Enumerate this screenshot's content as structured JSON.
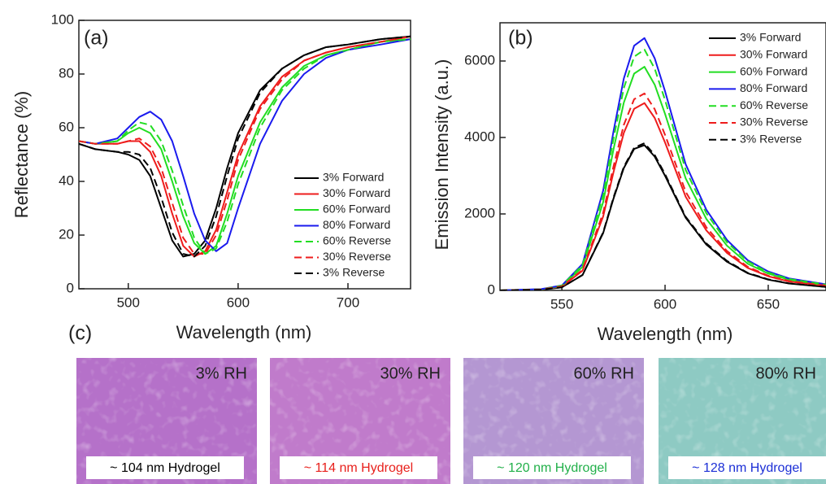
{
  "chart_data": [
    {
      "type": "line",
      "panel_label": "(a)",
      "x_label": "Wavelength (nm)",
      "y_label": "Reflectance (%)",
      "xlim": [
        455,
        757
      ],
      "ylim": [
        0,
        100
      ],
      "xticks": [
        500,
        600,
        700
      ],
      "yticks": [
        0,
        20,
        40,
        60,
        80,
        100
      ],
      "legend": "lower right",
      "x": [
        455,
        470,
        490,
        500,
        510,
        520,
        530,
        540,
        550,
        560,
        570,
        580,
        590,
        600,
        620,
        640,
        660,
        680,
        700,
        730,
        757
      ],
      "series": [
        {
          "name": "3% Forward",
          "color": "#000000",
          "dash": false,
          "values": [
            54,
            52,
            51,
            50,
            48,
            42,
            30,
            18,
            12,
            13,
            18,
            30,
            45,
            58,
            74,
            82,
            87,
            90,
            91,
            93,
            94
          ]
        },
        {
          "name": "30% Forward",
          "color": "#ee1c1c",
          "dash": false,
          "values": [
            55,
            54,
            54,
            55,
            55,
            51,
            42,
            28,
            16,
            12,
            14,
            22,
            36,
            50,
            68,
            79,
            85,
            88,
            90,
            92,
            94
          ]
        },
        {
          "name": "60% Forward",
          "color": "#22dd22",
          "dash": false,
          "values": [
            55,
            54,
            55,
            58,
            60,
            58,
            52,
            40,
            27,
            17,
            13,
            16,
            28,
            42,
            62,
            75,
            83,
            87,
            89,
            92,
            93
          ]
        },
        {
          "name": "80% Forward",
          "color": "#1a1aee",
          "dash": false,
          "values": [
            55,
            54,
            56,
            60,
            64,
            66,
            63,
            55,
            42,
            28,
            18,
            14,
            17,
            30,
            54,
            70,
            80,
            86,
            89,
            91,
            93
          ]
        },
        {
          "name": "60% Reverse",
          "color": "#22dd22",
          "dash": true,
          "values": [
            55,
            54,
            55,
            59,
            62,
            61,
            55,
            44,
            31,
            19,
            13,
            15,
            25,
            39,
            60,
            74,
            82,
            87,
            89,
            92,
            93
          ]
        },
        {
          "name": "30% Reverse",
          "color": "#ee1c1c",
          "dash": true,
          "values": [
            55,
            54,
            54,
            55,
            56,
            53,
            45,
            32,
            19,
            13,
            13,
            20,
            33,
            48,
            67,
            78,
            85,
            88,
            90,
            92,
            94
          ]
        },
        {
          "name": "3% Reverse",
          "color": "#000000",
          "dash": true,
          "values": [
            54,
            52,
            51,
            51,
            50,
            45,
            34,
            21,
            13,
            12,
            16,
            27,
            42,
            56,
            73,
            82,
            87,
            90,
            91,
            93,
            94
          ]
        }
      ]
    },
    {
      "type": "line",
      "panel_label": "(b)",
      "x_label": "Wavelength (nm)",
      "y_label": "Emission Intensity (a.u.)",
      "xlim": [
        520,
        678
      ],
      "ylim": [
        0,
        7000
      ],
      "xticks": [
        550,
        600,
        650
      ],
      "yticks": [
        0,
        2000,
        4000,
        6000
      ],
      "legend": "upper right",
      "x": [
        520,
        540,
        550,
        560,
        570,
        575,
        580,
        585,
        590,
        595,
        600,
        610,
        620,
        630,
        640,
        650,
        660,
        678
      ],
      "series": [
        {
          "name": "3% Forward",
          "color": "#000000",
          "dash": false,
          "values": [
            0,
            20,
            80,
            400,
            1500,
            2400,
            3200,
            3700,
            3800,
            3500,
            3000,
            1900,
            1200,
            750,
            450,
            280,
            180,
            90
          ]
        },
        {
          "name": "30% Forward",
          "color": "#ee1c1c",
          "dash": false,
          "values": [
            0,
            25,
            100,
            515,
            1935,
            3090,
            4120,
            4750,
            4900,
            4510,
            3870,
            2450,
            1570,
            980,
            590,
            370,
            235,
            120
          ]
        },
        {
          "name": "60% Forward",
          "color": "#22dd22",
          "dash": false,
          "values": [
            0,
            30,
            115,
            615,
            2310,
            3690,
            4910,
            5670,
            5850,
            5380,
            4620,
            2930,
            1870,
            1170,
            700,
            440,
            280,
            140
          ]
        },
        {
          "name": "80% Forward",
          "color": "#1a1aee",
          "dash": false,
          "values": [
            0,
            35,
            130,
            690,
            2610,
            4160,
            5540,
            6400,
            6600,
            6070,
            5210,
            3300,
            2110,
            1320,
            790,
            495,
            315,
            160
          ]
        },
        {
          "name": "60% Reverse",
          "color": "#22dd22",
          "dash": true,
          "values": [
            0,
            30,
            125,
            660,
            2490,
            3970,
            5290,
            6110,
            6300,
            5800,
            4980,
            3150,
            2020,
            1260,
            760,
            470,
            300,
            150
          ]
        },
        {
          "name": "30% Reverse",
          "color": "#ee1c1c",
          "dash": true,
          "values": [
            0,
            25,
            105,
            540,
            2030,
            3240,
            4330,
            5000,
            5150,
            4740,
            4070,
            2580,
            1650,
            1030,
            620,
            385,
            245,
            125
          ]
        },
        {
          "name": "3% Reverse",
          "color": "#000000",
          "dash": true,
          "values": [
            0,
            20,
            80,
            405,
            1520,
            2430,
            3230,
            3730,
            3850,
            3540,
            3040,
            1925,
            1230,
            770,
            460,
            290,
            185,
            90
          ]
        }
      ]
    }
  ],
  "image_panel": {
    "panel_label": "(c)",
    "items": [
      {
        "label": "3% RH",
        "caption": "~ 104 nm Hydrogel",
        "caption_color": "#000000",
        "tint": "#b571c9"
      },
      {
        "label": "30% RH",
        "caption": "~ 114 nm Hydrogel",
        "caption_color": "#e8201c",
        "tint": "#c07bcb"
      },
      {
        "label": "60% RH",
        "caption": "~ 120 nm Hydrogel",
        "caption_color": "#22b04a",
        "tint": "#b497d2"
      },
      {
        "label": "80% RH",
        "caption": "~ 128 nm Hydrogel",
        "caption_color": "#1c2fd6",
        "tint": "#8ecac3"
      }
    ]
  }
}
